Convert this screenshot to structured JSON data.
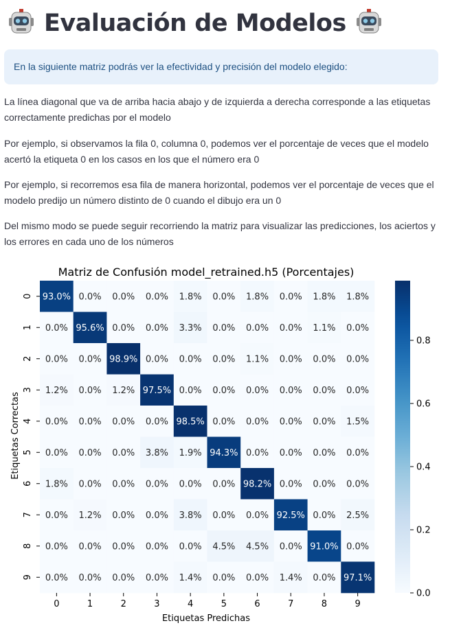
{
  "page": {
    "title": "Evaluación de Modelos",
    "robot_icon": "robot-face-icon",
    "info": "En la siguiente matriz podrás ver la efectividad y precisión del modelo elegido:",
    "paragraphs": [
      "La línea diagonal que va de arriba hacia abajo y de izquierda a derecha corresponde a las etiquetas correctamente predichas por el modelo",
      "Por ejemplo, si observamos la fila 0, columna 0, podemos ver el porcentaje de veces que el modelo acertó la etiqueta 0 en los casos en los que el número era 0",
      "Por ejemplo, si recorremos esa fila de manera horizontal, podemos ver el porcentaje de veces que el modelo predijo un número distinto de 0 cuando el dibujo era un 0",
      "Del mismo modo se puede seguir recorriendo la matriz para visualizar las predicciones, los aciertos y los errores en cada uno de los números"
    ],
    "colors": {
      "info_bg": "#e8f1fb",
      "info_text": "#1c4f80",
      "text": "#31333f",
      "cmap_low": "#f7fbff",
      "cmap_high": "#08306b"
    }
  },
  "chart_data": {
    "type": "heatmap",
    "title": "Matriz de Confusión model_retrained.h5 (Porcentajes)",
    "xlabel": "Etiquetas Predichas",
    "ylabel": "Etiquetas Correctas",
    "x_ticks": [
      "0",
      "1",
      "2",
      "3",
      "4",
      "5",
      "6",
      "7",
      "8",
      "9"
    ],
    "y_ticks": [
      "0",
      "1",
      "2",
      "3",
      "4",
      "5",
      "6",
      "7",
      "8",
      "9"
    ],
    "values": [
      [
        0.93,
        0.0,
        0.0,
        0.0,
        0.018,
        0.0,
        0.018,
        0.0,
        0.018,
        0.018
      ],
      [
        0.0,
        0.956,
        0.0,
        0.0,
        0.033,
        0.0,
        0.0,
        0.0,
        0.011,
        0.0
      ],
      [
        0.0,
        0.0,
        0.989,
        0.0,
        0.0,
        0.0,
        0.011,
        0.0,
        0.0,
        0.0
      ],
      [
        0.012,
        0.0,
        0.012,
        0.975,
        0.0,
        0.0,
        0.0,
        0.0,
        0.0,
        0.0
      ],
      [
        0.0,
        0.0,
        0.0,
        0.0,
        0.985,
        0.0,
        0.0,
        0.0,
        0.0,
        0.015
      ],
      [
        0.0,
        0.0,
        0.0,
        0.038,
        0.019,
        0.943,
        0.0,
        0.0,
        0.0,
        0.0
      ],
      [
        0.018,
        0.0,
        0.0,
        0.0,
        0.0,
        0.0,
        0.982,
        0.0,
        0.0,
        0.0
      ],
      [
        0.0,
        0.012,
        0.0,
        0.0,
        0.038,
        0.0,
        0.0,
        0.925,
        0.0,
        0.025
      ],
      [
        0.0,
        0.0,
        0.0,
        0.0,
        0.0,
        0.045,
        0.045,
        0.0,
        0.91,
        0.0
      ],
      [
        0.0,
        0.0,
        0.0,
        0.0,
        0.014,
        0.0,
        0.0,
        0.014,
        0.0,
        0.971
      ]
    ],
    "cell_labels": [
      [
        "93.0%",
        "0.0%",
        "0.0%",
        "0.0%",
        "1.8%",
        "0.0%",
        "1.8%",
        "0.0%",
        "1.8%",
        "1.8%"
      ],
      [
        "0.0%",
        "95.6%",
        "0.0%",
        "0.0%",
        "3.3%",
        "0.0%",
        "0.0%",
        "0.0%",
        "1.1%",
        "0.0%"
      ],
      [
        "0.0%",
        "0.0%",
        "98.9%",
        "0.0%",
        "0.0%",
        "0.0%",
        "1.1%",
        "0.0%",
        "0.0%",
        "0.0%"
      ],
      [
        "1.2%",
        "0.0%",
        "1.2%",
        "97.5%",
        "0.0%",
        "0.0%",
        "0.0%",
        "0.0%",
        "0.0%",
        "0.0%"
      ],
      [
        "0.0%",
        "0.0%",
        "0.0%",
        "0.0%",
        "98.5%",
        "0.0%",
        "0.0%",
        "0.0%",
        "0.0%",
        "1.5%"
      ],
      [
        "0.0%",
        "0.0%",
        "0.0%",
        "3.8%",
        "1.9%",
        "94.3%",
        "0.0%",
        "0.0%",
        "0.0%",
        "0.0%"
      ],
      [
        "1.8%",
        "0.0%",
        "0.0%",
        "0.0%",
        "0.0%",
        "0.0%",
        "98.2%",
        "0.0%",
        "0.0%",
        "0.0%"
      ],
      [
        "0.0%",
        "1.2%",
        "0.0%",
        "0.0%",
        "3.8%",
        "0.0%",
        "0.0%",
        "92.5%",
        "0.0%",
        "2.5%"
      ],
      [
        "0.0%",
        "0.0%",
        "0.0%",
        "0.0%",
        "0.0%",
        "4.5%",
        "4.5%",
        "0.0%",
        "91.0%",
        "0.0%"
      ],
      [
        "0.0%",
        "0.0%",
        "0.0%",
        "0.0%",
        "1.4%",
        "0.0%",
        "0.0%",
        "1.4%",
        "0.0%",
        "97.1%"
      ]
    ],
    "colorbar": {
      "range": [
        0.0,
        0.989
      ],
      "ticks": [
        0.0,
        0.2,
        0.4,
        0.6,
        0.8
      ],
      "tick_labels": [
        "0.0",
        "0.2",
        "0.4",
        "0.6",
        "0.8"
      ]
    },
    "colormap": "Blues",
    "grid": false
  }
}
